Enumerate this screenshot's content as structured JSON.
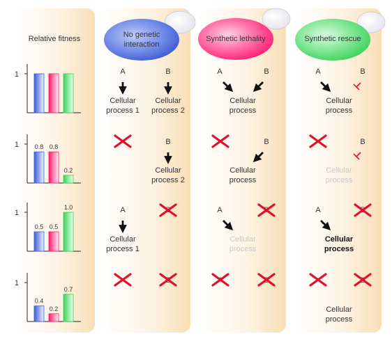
{
  "fitness_title": "Relative fitness",
  "columns": [
    {
      "title": "No genetic interaction",
      "title_lines": [
        "No genetic",
        "interaction"
      ],
      "color": "#3c5fd8"
    },
    {
      "title": "Synthetic lethality",
      "title_lines": [
        "Synthetic lethality"
      ],
      "color": "#ff1a6c"
    },
    {
      "title": "Synthetic rescue",
      "title_lines": [
        "Synthetic rescue"
      ],
      "color": "#39d25a"
    }
  ],
  "gene_labels": {
    "a": "A",
    "b": "B"
  },
  "process_labels": {
    "p1": [
      "Cellular",
      "process 1"
    ],
    "p2": [
      "Cellular",
      "process 2"
    ],
    "p": [
      "Cellular",
      "process"
    ]
  },
  "chart_data": {
    "type": "bar",
    "ylabel": "Relative fitness",
    "yticks": [
      "1"
    ],
    "ylim": [
      0,
      1.15
    ],
    "categories": [
      "No genetic interaction",
      "Synthetic lethality",
      "Synthetic rescue"
    ],
    "panels": [
      {
        "values": [
          1.0,
          1.0,
          1.0
        ],
        "labels": [
          "",
          "",
          ""
        ]
      },
      {
        "values": [
          0.8,
          0.8,
          0.2
        ],
        "labels": [
          "0.8",
          "0.8",
          "0.2"
        ]
      },
      {
        "values": [
          0.5,
          0.5,
          1.0
        ],
        "labels": [
          "0.5",
          "0.5",
          "1.0"
        ]
      },
      {
        "values": [
          0.4,
          0.2,
          0.7
        ],
        "labels": [
          "0.4",
          "0.2",
          "0.7"
        ]
      }
    ]
  }
}
